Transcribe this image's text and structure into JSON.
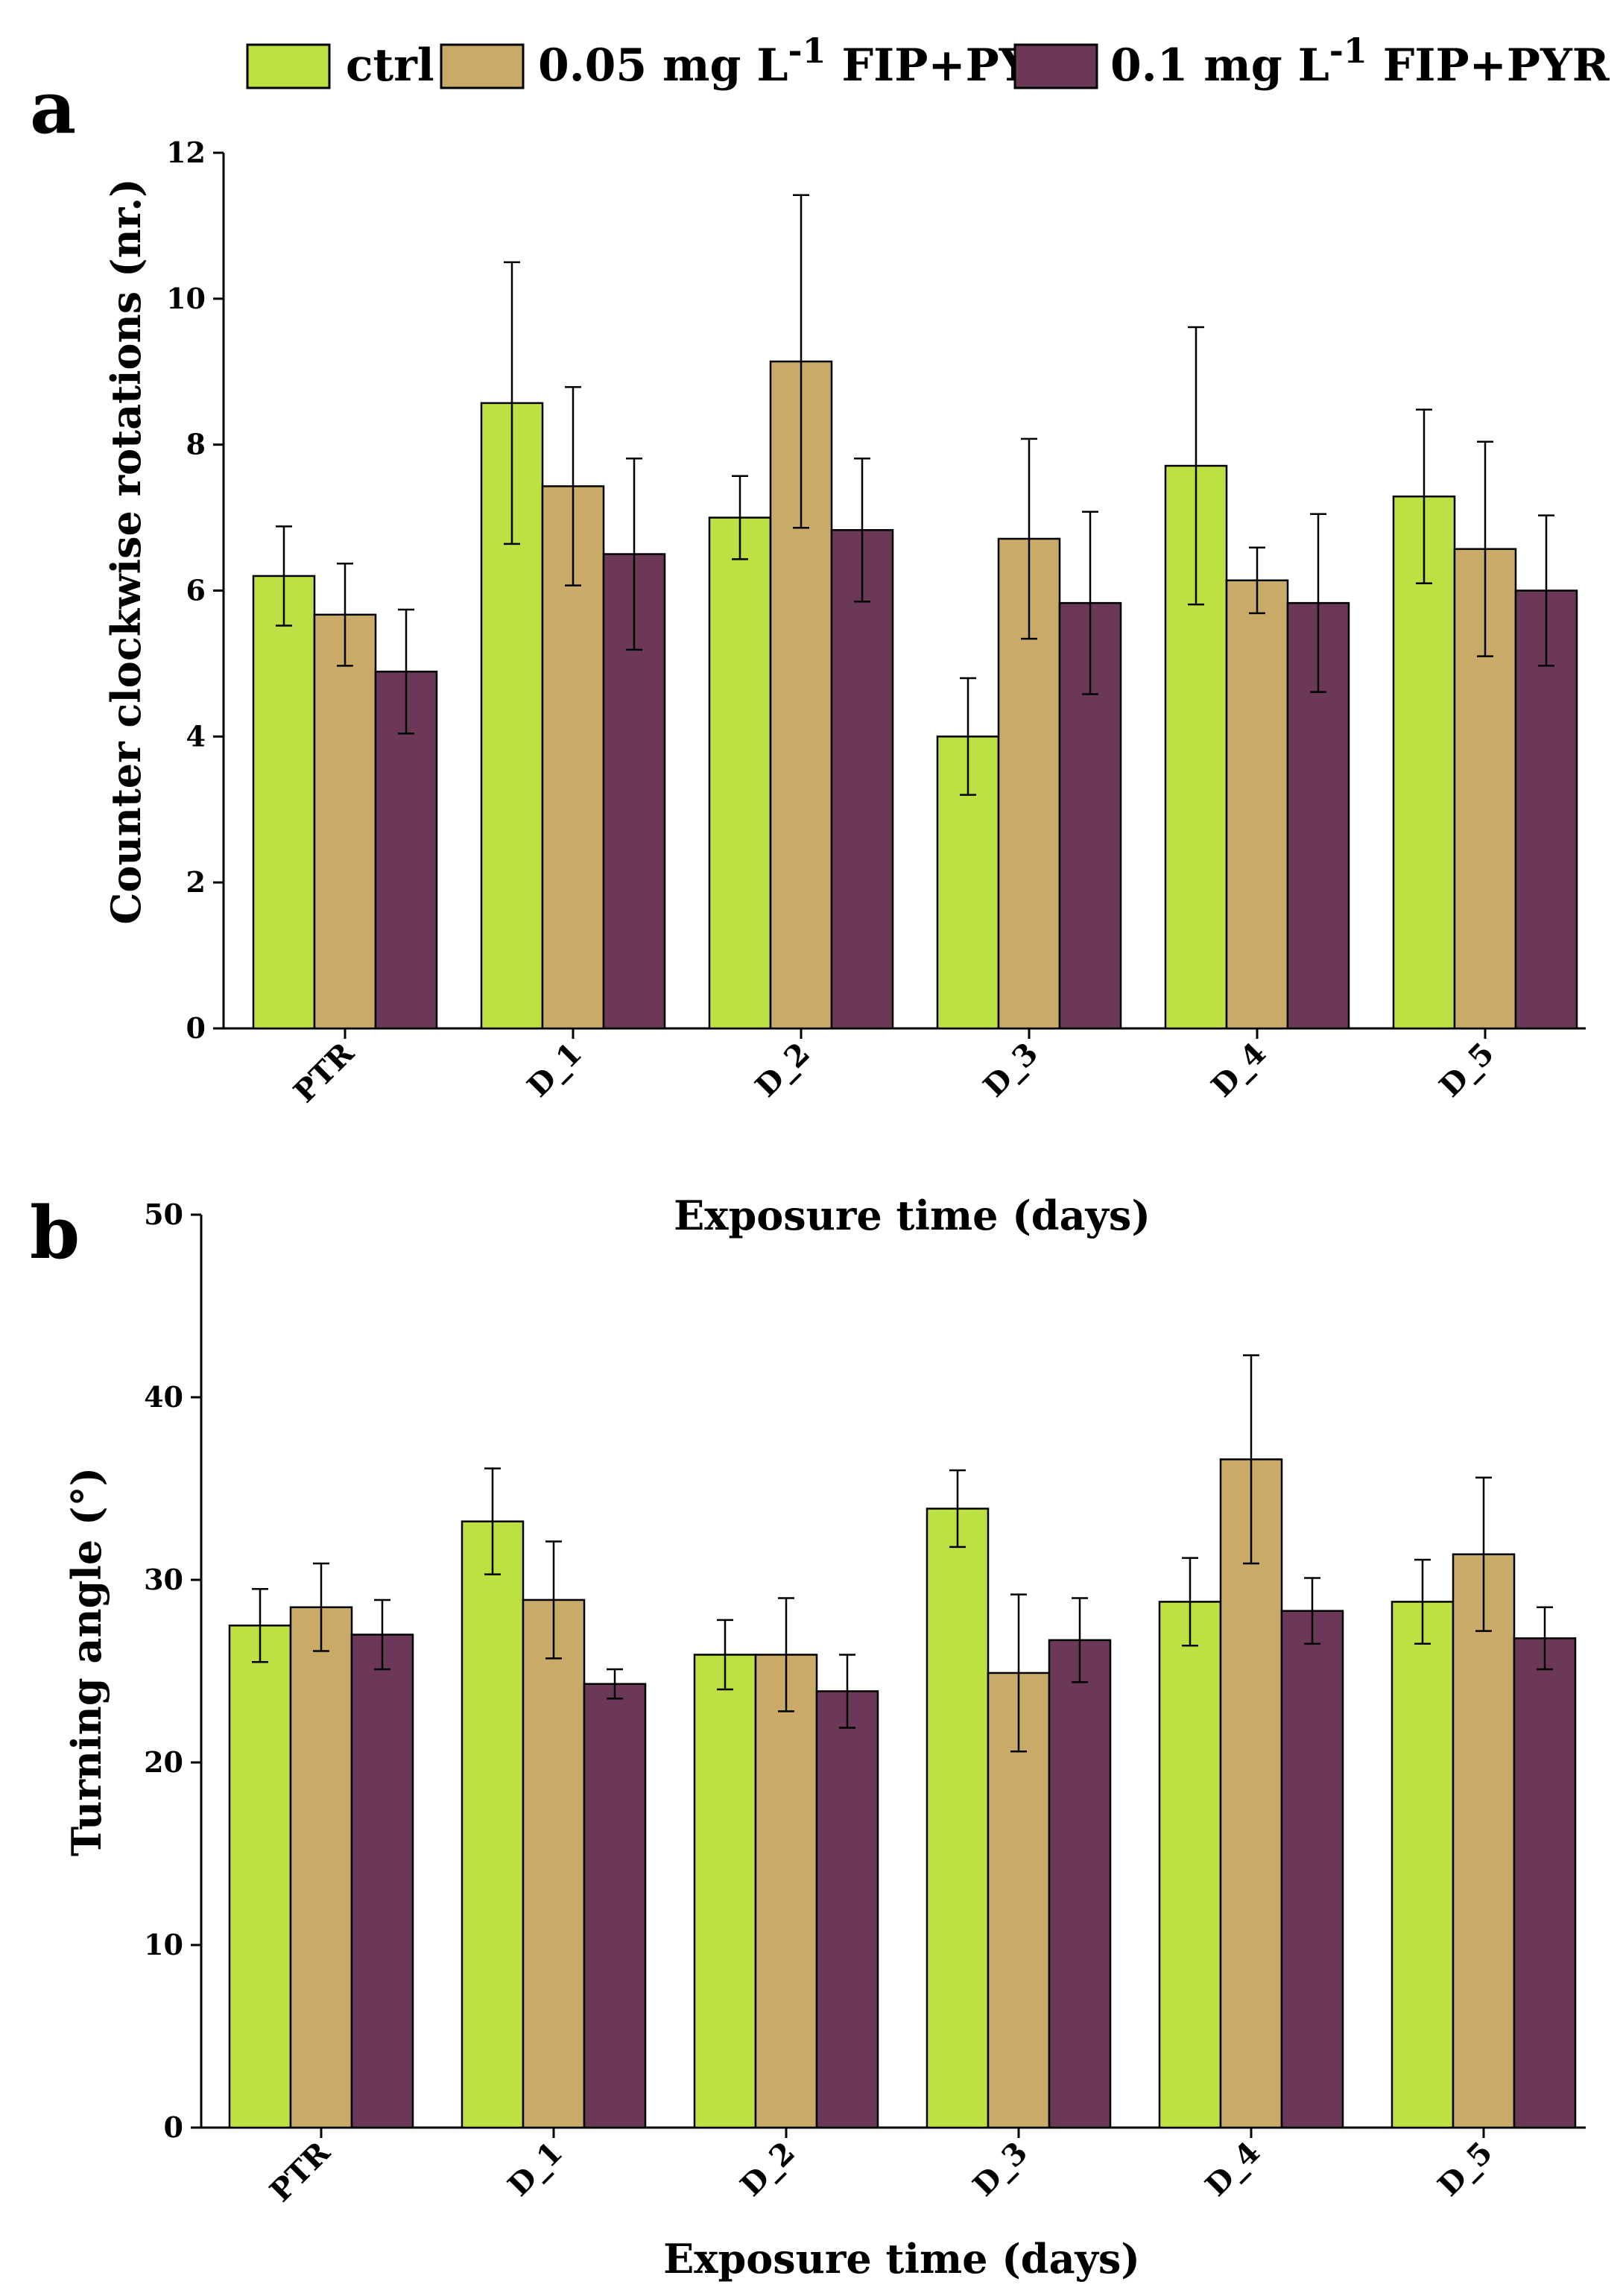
{
  "legend": {
    "items": [
      {
        "label": "ctrl",
        "color": "#bde042"
      },
      {
        "label": "0.05 mg L",
        "sup": "-1",
        "suffix": " FIP+PYR",
        "color": "#c9aa68"
      },
      {
        "label": "0.1 mg L",
        "sup": "-1",
        "suffix": " FIP+PYR",
        "color": "#6b3957"
      }
    ]
  },
  "chart_data": [
    {
      "panel": "a",
      "type": "bar",
      "ylabel": "Counter clockwise rotations (nr.)",
      "xlabel": "Exposure time (days)",
      "ylim": [
        0,
        12
      ],
      "yticks": [
        "0",
        "2",
        "4",
        "6",
        "8",
        "10",
        "12"
      ],
      "categories": [
        "PTR",
        "D_1",
        "D_2",
        "D_3",
        "D_4",
        "D_5"
      ],
      "series": [
        {
          "name": "ctrl",
          "values": [
            6.2,
            8.57,
            7.0,
            4.0,
            7.71,
            7.29
          ],
          "errors": [
            0.68,
            1.93,
            0.57,
            0.8,
            1.9,
            1.19
          ]
        },
        {
          "name": "0.05 mg L-1 FIP+PYR",
          "values": [
            5.67,
            7.43,
            9.14,
            6.71,
            6.14,
            6.57
          ],
          "errors": [
            0.7,
            1.36,
            2.28,
            1.37,
            0.45,
            1.47
          ]
        },
        {
          "name": "0.1 mg L-1 FIP+PYR",
          "values": [
            4.89,
            6.5,
            6.83,
            5.83,
            5.83,
            6.0
          ],
          "errors": [
            0.85,
            1.31,
            0.98,
            1.25,
            1.22,
            1.03
          ]
        }
      ]
    },
    {
      "panel": "b",
      "type": "bar",
      "ylabel": "Turning angle (°)",
      "xlabel": "Exposure time (days)",
      "ylim": [
        0,
        50
      ],
      "yticks": [
        "0",
        "10",
        "20",
        "30",
        "40",
        "50"
      ],
      "categories": [
        "PTR",
        "D_1",
        "D_2",
        "D_3",
        "D_4",
        "D_5"
      ],
      "series": [
        {
          "name": "ctrl",
          "values": [
            27.5,
            33.2,
            25.9,
            33.9,
            28.8,
            28.8
          ],
          "errors": [
            2.0,
            2.9,
            1.9,
            2.1,
            2.4,
            2.3
          ]
        },
        {
          "name": "0.05 mg L-1 FIP+PYR",
          "values": [
            28.5,
            28.9,
            25.9,
            24.9,
            36.6,
            31.4
          ],
          "errors": [
            2.4,
            3.2,
            3.1,
            4.3,
            5.7,
            4.2
          ]
        },
        {
          "name": "0.1 mg L-1 FIP+PYR",
          "values": [
            27.0,
            24.3,
            23.9,
            26.7,
            28.3,
            26.8
          ],
          "errors": [
            1.9,
            0.8,
            2.0,
            2.3,
            1.8,
            1.7
          ]
        }
      ]
    }
  ]
}
